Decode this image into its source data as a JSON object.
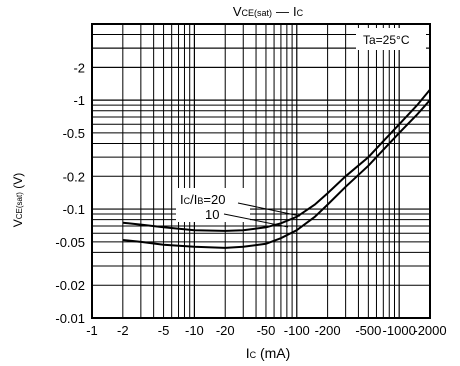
{
  "chart_data": {
    "type": "line",
    "title_main": "V",
    "title_sub": "CE(sat)",
    "title_dash": "—",
    "title_tail_main": "I",
    "title_tail_sub": "C",
    "xlabel_main": "I",
    "xlabel_sub": "C",
    "xlabel_unit": " (mA)",
    "ylabel_main": "V",
    "ylabel_sub": "CE(sat)",
    "ylabel_unit": " (V)",
    "x_scale": "log",
    "y_scale": "log",
    "xlim": [
      -1,
      -2000
    ],
    "ylim": [
      -0.01,
      -5
    ],
    "x_ticks": [
      {
        "value": -1,
        "label": "-1"
      },
      {
        "value": -2,
        "label": "-2"
      },
      {
        "value": -5,
        "label": "-5"
      },
      {
        "value": -10,
        "label": "-10"
      },
      {
        "value": -20,
        "label": "-20"
      },
      {
        "value": -50,
        "label": "-50"
      },
      {
        "value": -100,
        "label": "-100"
      },
      {
        "value": -200,
        "label": "-200"
      },
      {
        "value": -500,
        "label": "-500"
      },
      {
        "value": -1000,
        "label": "-1000"
      },
      {
        "value": -2000,
        "label": "-2000"
      }
    ],
    "y_ticks": [
      {
        "value": -0.01,
        "label": "-0.01"
      },
      {
        "value": -0.02,
        "label": "-0.02"
      },
      {
        "value": -0.05,
        "label": "-0.05"
      },
      {
        "value": -0.1,
        "label": "-0.1"
      },
      {
        "value": -0.2,
        "label": "-0.2"
      },
      {
        "value": -0.5,
        "label": "-0.5"
      },
      {
        "value": -1,
        "label": "-1"
      },
      {
        "value": -2,
        "label": "-2"
      }
    ],
    "grid": true,
    "annotation_ta": "Ta=25°C",
    "annotation_ratio_prefix": "I",
    "annotation_ratio_sub1": "C",
    "annotation_ratio_mid": "/I",
    "annotation_ratio_sub2": "B",
    "annotation_ratio_value": "=20",
    "series": [
      {
        "label": "20",
        "x": [
          -2,
          -3,
          -5,
          -10,
          -20,
          -30,
          -50,
          -70,
          -100,
          -150,
          -200,
          -300,
          -500,
          -700,
          -1000,
          -1500,
          -2000
        ],
        "y": [
          -0.075,
          -0.072,
          -0.068,
          -0.064,
          -0.063,
          -0.064,
          -0.068,
          -0.074,
          -0.085,
          -0.11,
          -0.14,
          -0.2,
          -0.3,
          -0.42,
          -0.6,
          -0.9,
          -1.25
        ]
      },
      {
        "label": "10",
        "x": [
          -2,
          -3,
          -5,
          -10,
          -20,
          -30,
          -50,
          -70,
          -100,
          -150,
          -200,
          -300,
          -500,
          -700,
          -1000,
          -1500,
          -2000
        ],
        "y": [
          -0.052,
          -0.05,
          -0.047,
          -0.045,
          -0.044,
          -0.045,
          -0.048,
          -0.054,
          -0.064,
          -0.085,
          -0.11,
          -0.16,
          -0.25,
          -0.35,
          -0.5,
          -0.74,
          -1.0
        ]
      }
    ],
    "series_labels": [
      "10"
    ]
  }
}
